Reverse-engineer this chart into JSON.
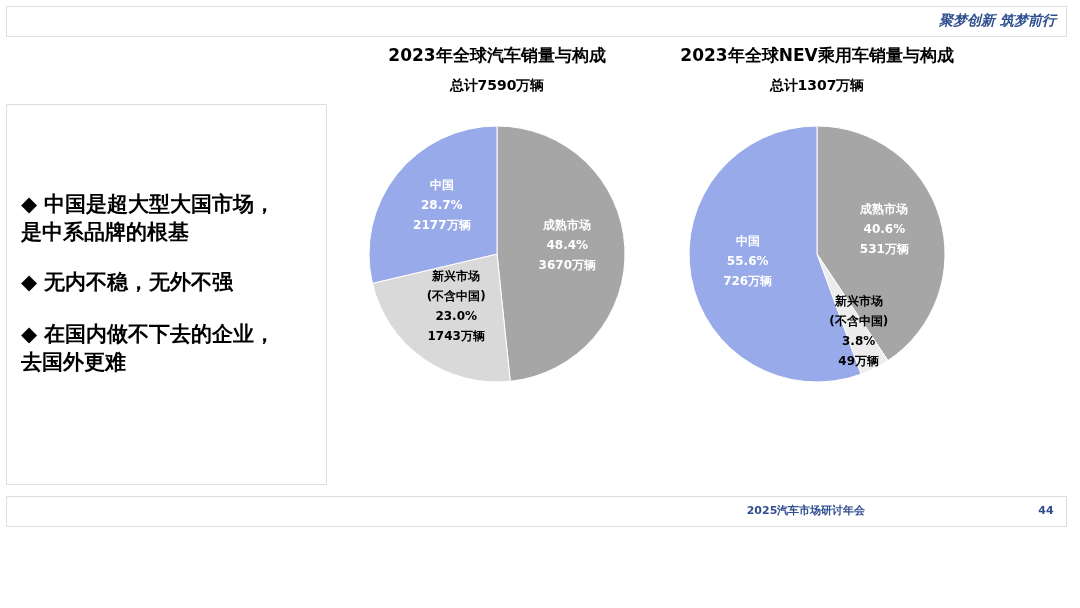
{
  "chart_data": [
    {
      "type": "other",
      "annotations": [
        "聚梦创新 筑梦前行",
        "◆ 中国是超大型大国市场，是中系品牌的根基",
        "◆ 无内不稳，无外不强",
        "◆ 在国内做不下去的企业，去国外更难",
        "2025汽车市场研讨年会",
        "44"
      ]
    },
    {
      "type": "pie",
      "title": "2023年全球汽车销量与构成",
      "subtitle": "总计7590万辆",
      "categories": [
        "成熟市场",
        "新兴市场\n(不含中国)",
        "中国"
      ],
      "values": [
        3670,
        1743,
        2177
      ],
      "value_labels": [
        "48.4%\n3670万辆",
        "23.0%\n1743万辆",
        "28.7%\n2177万辆"
      ],
      "colors": [
        "#a6a6a6",
        "#d9d9d9",
        "#98aaea"
      ],
      "legend": false
    },
    {
      "type": "pie",
      "title": "2023年全球NEV乘用车销量与构成",
      "subtitle": "总计1307万辆",
      "categories": [
        "成熟市场",
        "新兴市场\n(不含中国)",
        "中国"
      ],
      "values": [
        531,
        49,
        726
      ],
      "value_labels": [
        "40.6%\n531万辆",
        "3.8%\n49万辆",
        "55.6%\n726万辆"
      ],
      "colors": [
        "#a6a6a6",
        "#ececec",
        "#98aaea"
      ],
      "legend": false
    }
  ]
}
